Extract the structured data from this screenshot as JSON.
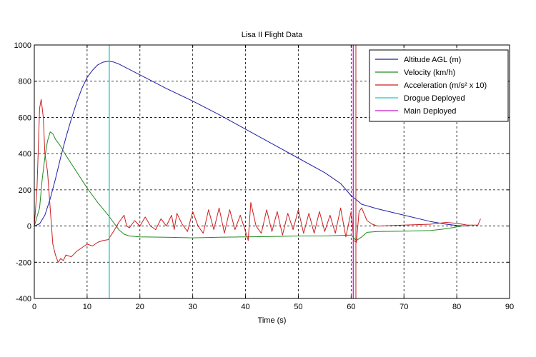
{
  "chart_data": {
    "type": "line",
    "title": "Lisa II Flight Data",
    "xlabel": "Time (s)",
    "ylabel": "",
    "xlim": [
      0,
      90
    ],
    "ylim": [
      -400,
      1000
    ],
    "xticks": [
      0,
      10,
      20,
      30,
      40,
      50,
      60,
      70,
      80,
      90
    ],
    "yticks": [
      -400,
      -200,
      0,
      200,
      400,
      600,
      800,
      1000
    ],
    "grid": true,
    "legend_position": "top-right",
    "series": [
      {
        "name": "Altitude AGL (m)",
        "color": "#1f1fa8",
        "points": [
          [
            0,
            0
          ],
          [
            1,
            12
          ],
          [
            2,
            60
          ],
          [
            3,
            150
          ],
          [
            4,
            260
          ],
          [
            5,
            380
          ],
          [
            6,
            490
          ],
          [
            7,
            590
          ],
          [
            8,
            680
          ],
          [
            9,
            760
          ],
          [
            10,
            820
          ],
          [
            11,
            860
          ],
          [
            12,
            890
          ],
          [
            13,
            905
          ],
          [
            14,
            910
          ],
          [
            15,
            906
          ],
          [
            16,
            895
          ],
          [
            17,
            880
          ],
          [
            18,
            865
          ],
          [
            20,
            835
          ],
          [
            22,
            805
          ],
          [
            25,
            760
          ],
          [
            30,
            690
          ],
          [
            35,
            615
          ],
          [
            40,
            535
          ],
          [
            45,
            455
          ],
          [
            50,
            375
          ],
          [
            55,
            295
          ],
          [
            58,
            235
          ],
          [
            60,
            168
          ],
          [
            61,
            145
          ],
          [
            62,
            120
          ],
          [
            65,
            95
          ],
          [
            70,
            60
          ],
          [
            75,
            25
          ],
          [
            78,
            10
          ],
          [
            80,
            3
          ],
          [
            82,
            0
          ]
        ]
      },
      {
        "name": "Velocity (km/h)",
        "color": "#1c8c1c",
        "points": [
          [
            0,
            0
          ],
          [
            1,
            100
          ],
          [
            1.5,
            260
          ],
          [
            2,
            380
          ],
          [
            2.5,
            470
          ],
          [
            3,
            520
          ],
          [
            3.5,
            510
          ],
          [
            4,
            480
          ],
          [
            5,
            440
          ],
          [
            6,
            390
          ],
          [
            8,
            300
          ],
          [
            10,
            210
          ],
          [
            12,
            130
          ],
          [
            14,
            60
          ],
          [
            15,
            20
          ],
          [
            16,
            -20
          ],
          [
            17,
            -45
          ],
          [
            18,
            -55
          ],
          [
            20,
            -60
          ],
          [
            25,
            -62
          ],
          [
            30,
            -65
          ],
          [
            35,
            -62
          ],
          [
            40,
            -60
          ],
          [
            45,
            -58
          ],
          [
            50,
            -55
          ],
          [
            55,
            -55
          ],
          [
            60,
            -50
          ],
          [
            61,
            -80
          ],
          [
            62,
            -60
          ],
          [
            63,
            -35
          ],
          [
            65,
            -30
          ],
          [
            70,
            -28
          ],
          [
            75,
            -25
          ],
          [
            78,
            -15
          ],
          [
            80,
            -5
          ],
          [
            81,
            0
          ]
        ]
      },
      {
        "name": "Acceleration (m/s² x 10)",
        "color": "#cc1f1f",
        "points": [
          [
            0,
            0
          ],
          [
            0.5,
            200
          ],
          [
            1,
            650
          ],
          [
            1.3,
            700
          ],
          [
            1.7,
            600
          ],
          [
            2,
            400
          ],
          [
            2.5,
            300
          ],
          [
            3,
            100
          ],
          [
            3.5,
            -100
          ],
          [
            4,
            -160
          ],
          [
            4.5,
            -200
          ],
          [
            5,
            -180
          ],
          [
            5.5,
            -190
          ],
          [
            6,
            -160
          ],
          [
            7,
            -170
          ],
          [
            8,
            -140
          ],
          [
            9,
            -120
          ],
          [
            10,
            -100
          ],
          [
            11,
            -110
          ],
          [
            12,
            -90
          ],
          [
            13,
            -80
          ],
          [
            14,
            -75
          ],
          [
            15,
            -30
          ],
          [
            16,
            20
          ],
          [
            17,
            60
          ],
          [
            17.5,
            0
          ],
          [
            18,
            -10
          ],
          [
            19,
            30
          ],
          [
            20,
            0
          ],
          [
            21,
            50
          ],
          [
            22,
            0
          ],
          [
            23,
            -20
          ],
          [
            24,
            40
          ],
          [
            25,
            0
          ],
          [
            26,
            60
          ],
          [
            26.5,
            -20
          ],
          [
            27,
            70
          ],
          [
            28,
            10
          ],
          [
            29,
            -30
          ],
          [
            30,
            80
          ],
          [
            31,
            0
          ],
          [
            32,
            -40
          ],
          [
            33,
            90
          ],
          [
            34,
            -20
          ],
          [
            35,
            100
          ],
          [
            36,
            -40
          ],
          [
            37,
            90
          ],
          [
            38,
            -20
          ],
          [
            39,
            60
          ],
          [
            40,
            -30
          ],
          [
            40.5,
            -80
          ],
          [
            41,
            130
          ],
          [
            42,
            0
          ],
          [
            43,
            -40
          ],
          [
            44,
            90
          ],
          [
            45,
            -30
          ],
          [
            46,
            80
          ],
          [
            47,
            -50
          ],
          [
            48,
            70
          ],
          [
            49,
            -20
          ],
          [
            50,
            90
          ],
          [
            51,
            -40
          ],
          [
            52,
            70
          ],
          [
            53,
            -40
          ],
          [
            54,
            80
          ],
          [
            55,
            -30
          ],
          [
            56,
            60
          ],
          [
            57,
            -40
          ],
          [
            58,
            100
          ],
          [
            59,
            -60
          ],
          [
            60,
            80
          ],
          [
            60.5,
            -80
          ],
          [
            61,
            -90
          ],
          [
            61.5,
            80
          ],
          [
            62,
            100
          ],
          [
            63,
            30
          ],
          [
            64,
            10
          ],
          [
            65,
            0
          ],
          [
            70,
            5
          ],
          [
            75,
            10
          ],
          [
            78,
            20
          ],
          [
            80,
            15
          ],
          [
            82,
            5
          ],
          [
            84,
            5
          ],
          [
            84.5,
            40
          ]
        ]
      }
    ],
    "markers": [
      {
        "name": "Drogue Deployed",
        "x": 14.2,
        "color": "#1cc8c8"
      },
      {
        "name": "Main Deployed",
        "x": 60.4,
        "color": "#c81cc8"
      }
    ],
    "extra_vertical_lines": [
      {
        "x": 60.9,
        "color": "#cc1f1f"
      }
    ]
  }
}
